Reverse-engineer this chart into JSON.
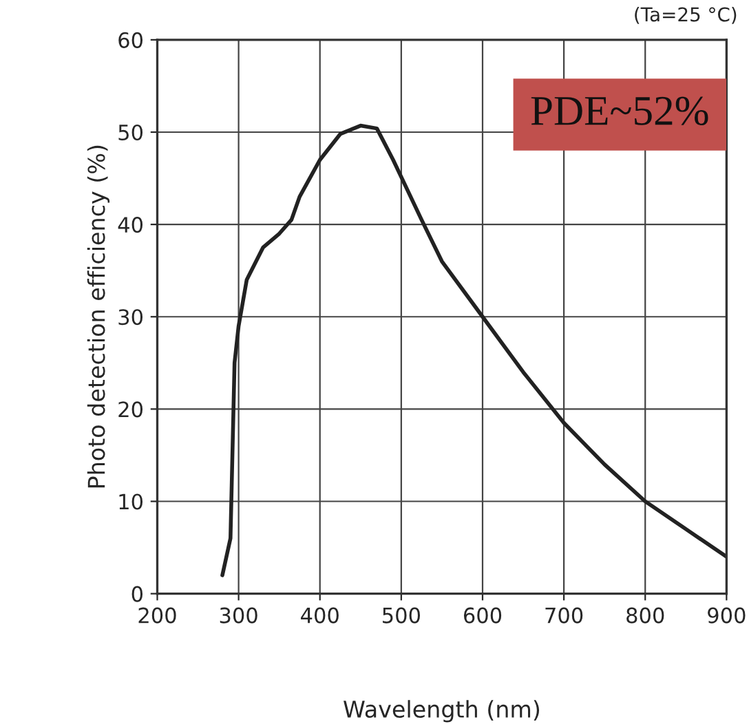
{
  "chart_data": {
    "type": "line",
    "xlabel": "Wavelength (nm)",
    "ylabel": "Photo detection efficiency (%)",
    "annotations": [
      "(Ta=25 °C)",
      "PDE~52%"
    ],
    "series": [
      {
        "color": "#222222",
        "x": [
          280,
          290,
          295,
          300,
          310,
          330,
          350,
          365,
          375,
          400,
          425,
          450,
          470,
          490,
          525,
          550,
          600,
          650,
          700,
          750,
          800,
          850,
          900
        ],
        "values": [
          2,
          6,
          25,
          29,
          34,
          37.5,
          39,
          40.5,
          43,
          47,
          49.8,
          50.7,
          50.4,
          47,
          40.5,
          36,
          30,
          24,
          18.5,
          14,
          10,
          7,
          4
        ]
      }
    ],
    "xlim": [
      200,
      900
    ],
    "xticks": [
      200,
      300,
      400,
      500,
      600,
      700,
      800,
      900
    ],
    "ylim": [
      0,
      60
    ],
    "yticks": [
      0,
      10,
      20,
      30,
      40,
      50,
      60
    ],
    "grid": true,
    "line_style": "solid",
    "marker": "none"
  }
}
